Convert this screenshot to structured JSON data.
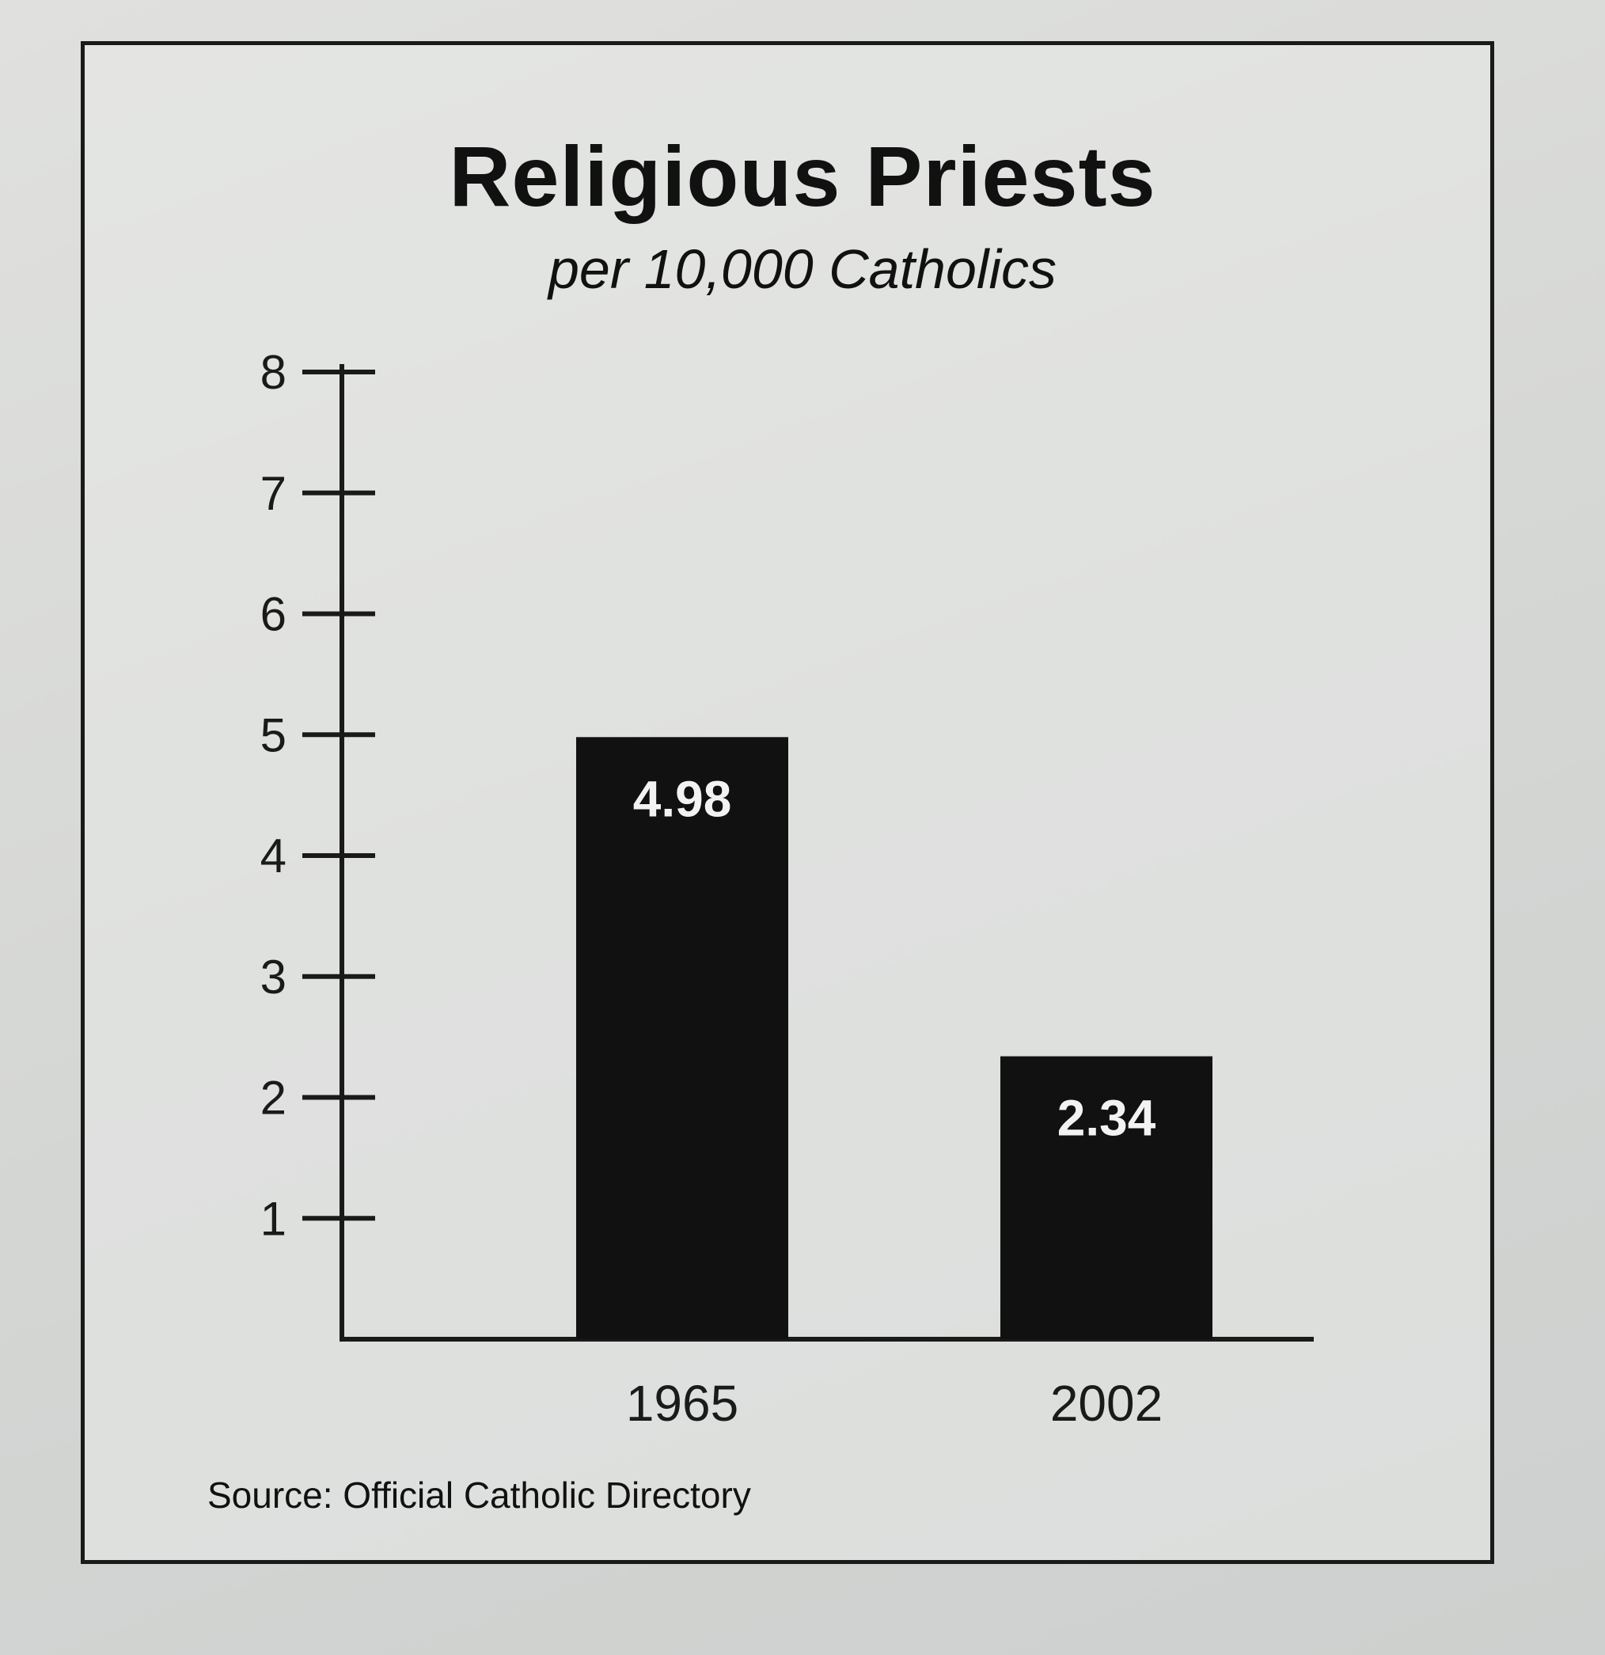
{
  "chart_data": {
    "type": "bar",
    "title": "Religious Priests",
    "subtitle": "per 10,000 Catholics",
    "categories": [
      "1965",
      "2002"
    ],
    "values": [
      4.98,
      2.34
    ],
    "data_labels": [
      "4.98",
      "2.34"
    ],
    "yticks": [
      1,
      2,
      3,
      4,
      5,
      6,
      7,
      8
    ],
    "ylim": [
      0,
      8
    ],
    "xlabel": "",
    "ylabel": "",
    "grid": false,
    "bar_color": "#111111",
    "source": "Source: Official Catholic Directory"
  }
}
